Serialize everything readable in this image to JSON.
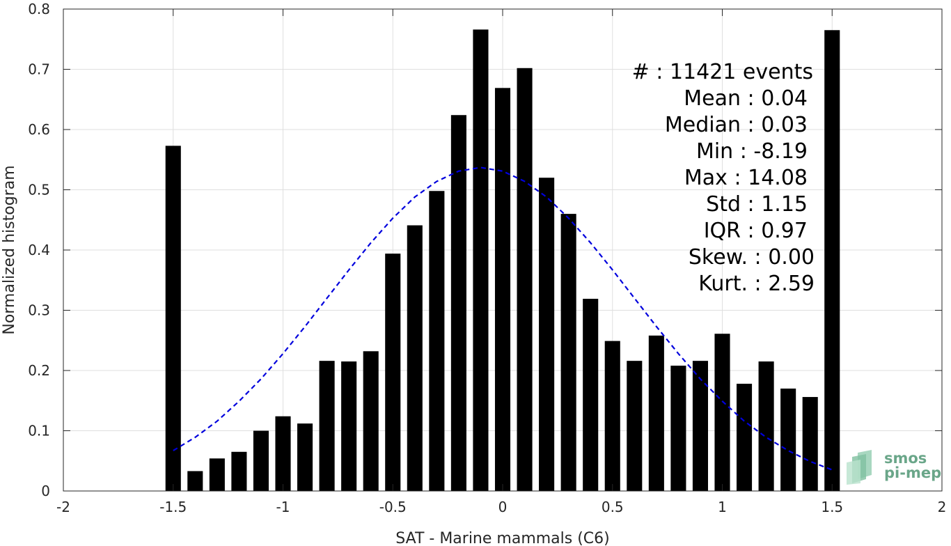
{
  "chart_data": {
    "type": "bar",
    "xlabel": "SAT - Marine mammals (C6)",
    "ylabel": "Normalized histogram",
    "xlim": [
      -2,
      2
    ],
    "ylim": [
      0,
      0.8
    ],
    "x_ticks": [
      -2,
      -1.5,
      -1,
      -0.5,
      0,
      0.5,
      1,
      1.5,
      2
    ],
    "x_tick_labels": [
      "-2",
      "-1.5",
      "-1",
      "-0.5",
      "0",
      "0.5",
      "1",
      "1.5",
      "2"
    ],
    "y_ticks": [
      0,
      0.1,
      0.2,
      0.3,
      0.4,
      0.5,
      0.6,
      0.7,
      0.8
    ],
    "y_tick_labels": [
      "0",
      "0.1",
      "0.2",
      "0.3",
      "0.4",
      "0.5",
      "0.6",
      "0.7",
      "0.8"
    ],
    "grid": true,
    "bar_width": 0.07,
    "bar_color": "#000000",
    "bars": {
      "x": [
        -1.5,
        -1.4,
        -1.3,
        -1.2,
        -1.1,
        -1.0,
        -0.9,
        -0.8,
        -0.7,
        -0.6,
        -0.5,
        -0.4,
        -0.3,
        -0.2,
        -0.1,
        0.0,
        0.1,
        0.2,
        0.3,
        0.4,
        0.5,
        0.6,
        0.7,
        0.8,
        0.9,
        1.0,
        1.1,
        1.2,
        1.3,
        1.4,
        1.5
      ],
      "values": [
        0.573,
        0.033,
        0.054,
        0.065,
        0.1,
        0.124,
        0.112,
        0.216,
        0.215,
        0.232,
        0.394,
        0.441,
        0.498,
        0.624,
        0.766,
        0.669,
        0.702,
        0.52,
        0.46,
        0.319,
        0.249,
        0.216,
        0.258,
        0.208,
        0.216,
        0.261,
        0.178,
        0.215,
        0.17,
        0.156,
        0.765
      ]
    },
    "fit_curve": {
      "style": "dashed",
      "color": "#0000dd",
      "x": [
        -1.5,
        -1.4,
        -1.3,
        -1.2,
        -1.1,
        -1.0,
        -0.9,
        -0.8,
        -0.7,
        -0.6,
        -0.5,
        -0.4,
        -0.3,
        -0.2,
        -0.1,
        0.0,
        0.1,
        0.2,
        0.3,
        0.4,
        0.5,
        0.6,
        0.7,
        0.8,
        0.9,
        1.0,
        1.1,
        1.2,
        1.3,
        1.4,
        1.5
      ],
      "y": [
        0.067,
        0.089,
        0.116,
        0.149,
        0.186,
        0.228,
        0.273,
        0.32,
        0.367,
        0.412,
        0.453,
        0.488,
        0.514,
        0.531,
        0.537,
        0.531,
        0.514,
        0.488,
        0.453,
        0.412,
        0.367,
        0.32,
        0.273,
        0.228,
        0.186,
        0.149,
        0.116,
        0.089,
        0.067,
        0.049,
        0.035
      ]
    },
    "stats": [
      {
        "label": "#  : 11421 events"
      },
      {
        "label": "Mean : 0.04"
      },
      {
        "label": "Median : 0.03"
      },
      {
        "label": "Min : -8.19"
      },
      {
        "label": "Max : 14.08"
      },
      {
        "label": "Std : 1.15"
      },
      {
        "label": "IQR : 0.97"
      },
      {
        "label": "Skew. : 0.00"
      },
      {
        "label": "Kurt. : 2.59"
      }
    ]
  },
  "logo": {
    "line1": "smos",
    "line2": "pi-mep",
    "color": "#6aa689"
  }
}
